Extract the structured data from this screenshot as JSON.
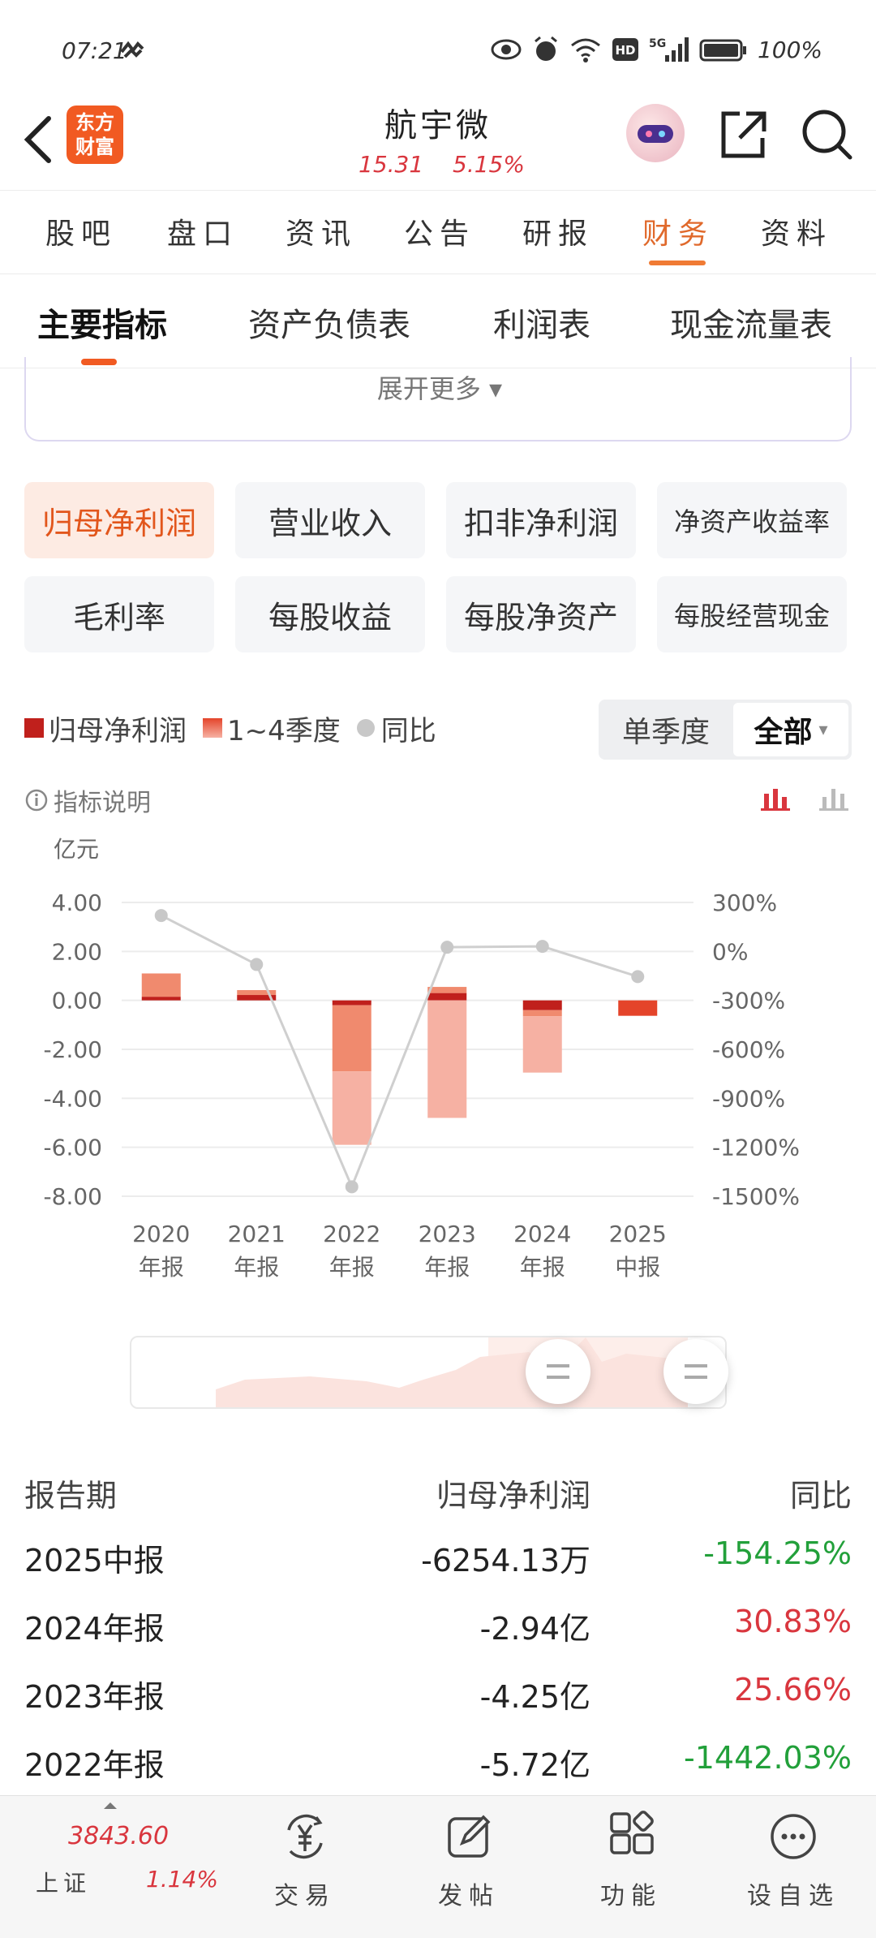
{
  "status_bar": {
    "time": "07:21",
    "battery": "100%",
    "network": "5G",
    "hd": "HD"
  },
  "header": {
    "logo_line1": "东方",
    "logo_line2": "财富",
    "stock_name": "航宇微",
    "price": "15.31",
    "change_pct": "5.15%"
  },
  "top_tabs": [
    "股吧",
    "盘口",
    "资讯",
    "公告",
    "研报",
    "财务",
    "资料"
  ],
  "top_tab_active": "财务",
  "sub_tabs": [
    "主要指标",
    "资产负债表",
    "利润表",
    "现金流量表"
  ],
  "sub_tab_active": "主要指标",
  "expand_more": "展开更多 ▾",
  "indicators": [
    "归母净利润",
    "营业收入",
    "扣非净利润",
    "净资产收益率",
    "毛利率",
    "每股收益",
    "每股净资产",
    "每股经营现金"
  ],
  "indicator_active": "归母净利润",
  "legend": {
    "main": "归母净利润",
    "quarters": "1~4季度",
    "yoy": "同比"
  },
  "period_toggle": {
    "left": "单季度",
    "right": "全部",
    "caret": "▾"
  },
  "indicator_note": "指标说明",
  "colors": {
    "accent": "#f15a22",
    "bar_dark": "#c0201c",
    "bar_light": "#f6b1a3",
    "up": "#d9363e",
    "down": "#22a03a"
  },
  "chart_data": {
    "type": "bar",
    "unit_label": "亿元",
    "categories": [
      "2020\n年报",
      "2021\n年报",
      "2022\n年报",
      "2023\n年报",
      "2024\n年报",
      "2025\n中报"
    ],
    "category_years": [
      "2020",
      "2021",
      "2022",
      "2023",
      "2024",
      "2025"
    ],
    "category_kinds": [
      "年报",
      "年报",
      "年报",
      "年报",
      "年报",
      "中报"
    ],
    "y_ticks": [
      "4.00",
      "2.00",
      "0.00",
      "-2.00",
      "-4.00",
      "-6.00",
      "-8.00"
    ],
    "ylim": [
      -8,
      4
    ],
    "y2_ticks": [
      "300%",
      "0%",
      "-300%",
      "-600%",
      "-900%",
      "-1200%",
      "-1500%"
    ],
    "y2lim": [
      -1500,
      300
    ],
    "series": [
      {
        "name": "归母净利润",
        "values": [
          0.55,
          0.4,
          -5.72,
          -4.25,
          -2.94,
          -0.63
        ]
      },
      {
        "name": "1~4季度",
        "segments": [
          [
            0.15,
            0.95
          ],
          [
            0.22,
            0.2
          ],
          [
            -0.2,
            -2.7,
            -3.0
          ],
          [
            0.3,
            0.25,
            -4.8
          ],
          [
            -0.4,
            -0.25,
            -2.3
          ],
          [
            -0.63
          ]
        ]
      },
      {
        "name": "同比",
        "values": [
          220,
          -80,
          -1442.03,
          25.66,
          30.83,
          -154.25
        ]
      }
    ]
  },
  "table": {
    "headers": [
      "报告期",
      "归母净利润",
      "同比"
    ],
    "rows": [
      {
        "period": "2025中报",
        "value": "-6254.13万",
        "yoy": "-154.25%",
        "dir": "down"
      },
      {
        "period": "2024年报",
        "value": "-2.94亿",
        "yoy": "30.83%",
        "dir": "up"
      },
      {
        "period": "2023年报",
        "value": "-4.25亿",
        "yoy": "25.66%",
        "dir": "up"
      },
      {
        "period": "2022年报",
        "value": "-5.72亿",
        "yoy": "-1442.03%",
        "dir": "down"
      }
    ]
  },
  "bottom_nav": {
    "index_value": "3843.60",
    "index_name": "上证",
    "index_pct": "1.14%",
    "items": [
      "交易",
      "发帖",
      "功能",
      "设自选"
    ]
  }
}
